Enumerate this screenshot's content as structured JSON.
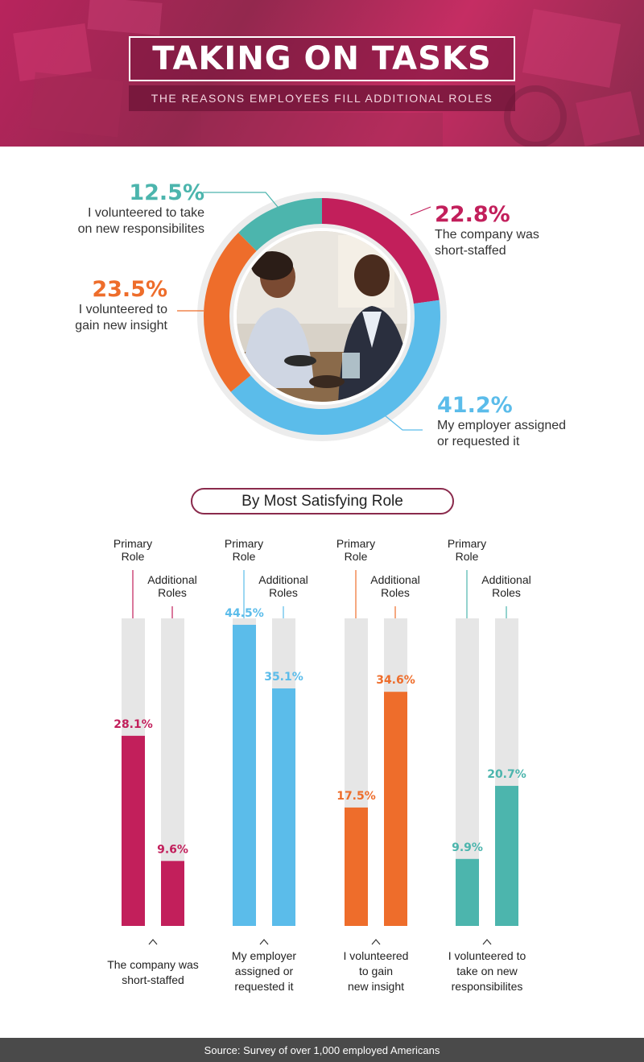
{
  "header": {
    "title": "TAKING ON TASKS",
    "subtitle": "THE REASONS EMPLOYEES FILL ADDITIONAL ROLES"
  },
  "colors": {
    "magenta": "#c21f5b",
    "blue": "#5bbcea",
    "orange": "#ee6d2b",
    "teal": "#4cb5ad",
    "track": "#e6e6e6",
    "footer": "#4a4a4a"
  },
  "donut": {
    "segments": [
      {
        "value": 22.8,
        "pct_label": "22.8%",
        "line1": "The company was",
        "line2": "short-staffed",
        "color": "#c21f5b"
      },
      {
        "value": 41.2,
        "pct_label": "41.2%",
        "line1": "My employer assigned",
        "line2": "or requested it",
        "color": "#5bbcea"
      },
      {
        "value": 23.5,
        "pct_label": "23.5%",
        "line1": "I volunteered to",
        "line2": "gain new insight",
        "color": "#ee6d2b"
      },
      {
        "value": 12.5,
        "pct_label": "12.5%",
        "line1": "I volunteered to take",
        "line2": "on new responsibilites",
        "color": "#4cb5ad"
      }
    ]
  },
  "section_title": "By Most Satisfying Role",
  "chart_data": [
    {
      "type": "pie",
      "title": "",
      "categories": [
        "The company was short-staffed",
        "My employer assigned or requested it",
        "I volunteered to gain new insight",
        "I volunteered to take on new responsibilites"
      ],
      "values": [
        22.8,
        41.2,
        23.5,
        12.5
      ]
    },
    {
      "type": "bar",
      "title": "By Most Satisfying Role",
      "categories": [
        "The company was short-staffed",
        "My employer assigned or requested it",
        "I volunteered to gain new insight",
        "I volunteered to take on new responsibilites"
      ],
      "category_labels": [
        [
          "The company was",
          "short-staffed"
        ],
        [
          "My employer",
          "assigned or",
          "requested it"
        ],
        [
          "I volunteered",
          "to gain",
          "new insight"
        ],
        [
          "I volunteered to",
          "take on new",
          "responsibilites"
        ]
      ],
      "series": [
        {
          "name": "Primary Role",
          "values": [
            28.1,
            44.5,
            17.5,
            9.9
          ],
          "labels": [
            "28.1%",
            "44.5%",
            "17.5%",
            "9.9%"
          ]
        },
        {
          "name": "Additional Roles",
          "values": [
            9.6,
            35.1,
            34.6,
            20.7
          ],
          "labels": [
            "9.6%",
            "35.1%",
            "34.6%",
            "20.7%"
          ]
        }
      ],
      "series_label_lines": [
        [
          "Primary",
          "Role"
        ],
        [
          "Additional",
          "Roles"
        ]
      ],
      "bar_colors": [
        "#c21f5b",
        "#5bbcea",
        "#ee6d2b",
        "#4cb5ad"
      ],
      "ylim": [
        0,
        50
      ],
      "grid": false
    }
  ],
  "footer": {
    "source": "Source: Survey of over 1,000 employed Americans"
  }
}
